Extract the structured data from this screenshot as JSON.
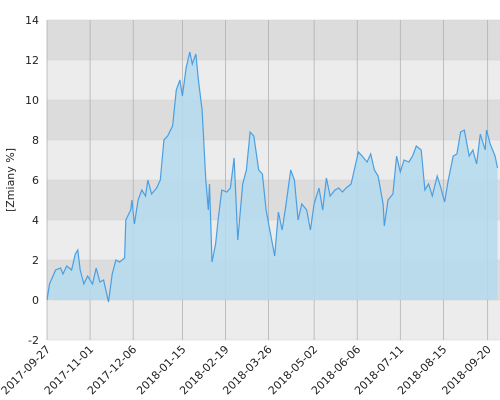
{
  "chart_data": {
    "type": "area",
    "y_label": "[Zmiany %]",
    "x": [
      "2017-09-27",
      "2017-09-29",
      "2017-10-04",
      "2017-10-08",
      "2017-10-10",
      "2017-10-13",
      "2017-10-17",
      "2017-10-20",
      "2017-10-22",
      "2017-10-24",
      "2017-10-27",
      "2017-10-30",
      "2017-11-03",
      "2017-11-06",
      "2017-11-09",
      "2017-11-12",
      "2017-11-16",
      "2017-11-19",
      "2017-11-22",
      "2017-11-25",
      "2017-11-29",
      "2017-11-30",
      "2017-12-04",
      "2017-12-05",
      "2017-12-07",
      "2017-12-10",
      "2017-12-13",
      "2017-12-16",
      "2017-12-18",
      "2017-12-21",
      "2017-12-25",
      "2017-12-28",
      "2017-12-31",
      "2018-01-03",
      "2018-01-07",
      "2018-01-10",
      "2018-01-13",
      "2018-01-15",
      "2018-01-18",
      "2018-01-21",
      "2018-01-23",
      "2018-01-26",
      "2018-01-28",
      "2018-01-31",
      "2018-02-03",
      "2018-02-05",
      "2018-02-06",
      "2018-02-08",
      "2018-02-11",
      "2018-02-13",
      "2018-02-16",
      "2018-02-20",
      "2018-02-23",
      "2018-02-26",
      "2018-03-01",
      "2018-03-05",
      "2018-03-08",
      "2018-03-11",
      "2018-03-14",
      "2018-03-18",
      "2018-03-21",
      "2018-03-24",
      "2018-03-27",
      "2018-03-31",
      "2018-04-03",
      "2018-04-06",
      "2018-04-09",
      "2018-04-13",
      "2018-04-16",
      "2018-04-19",
      "2018-04-22",
      "2018-04-26",
      "2018-04-29",
      "2018-05-02",
      "2018-05-06",
      "2018-05-09",
      "2018-05-12",
      "2018-05-15",
      "2018-05-19",
      "2018-05-22",
      "2018-05-25",
      "2018-05-28",
      "2018-06-01",
      "2018-06-04",
      "2018-06-07",
      "2018-06-10",
      "2018-06-14",
      "2018-06-17",
      "2018-06-20",
      "2018-06-23",
      "2018-06-27",
      "2018-06-28",
      "2018-07-01",
      "2018-07-05",
      "2018-07-08",
      "2018-07-11",
      "2018-07-14",
      "2018-07-18",
      "2018-07-21",
      "2018-07-24",
      "2018-07-28",
      "2018-07-31",
      "2018-08-03",
      "2018-08-06",
      "2018-08-10",
      "2018-08-13",
      "2018-08-16",
      "2018-08-19",
      "2018-08-23",
      "2018-08-26",
      "2018-08-29",
      "2018-09-01",
      "2018-09-05",
      "2018-09-08",
      "2018-09-11",
      "2018-09-14",
      "2018-09-18",
      "2018-09-19",
      "2018-09-22",
      "2018-09-26",
      "2018-09-28"
    ],
    "values": [
      0,
      0.8,
      1.5,
      1.6,
      1.3,
      1.7,
      1.5,
      2.3,
      2.5,
      1.5,
      0.8,
      1.2,
      0.8,
      1.6,
      0.9,
      1,
      -0.1,
      1.3,
      2,
      1.9,
      2.1,
      4,
      4.5,
      5,
      3.8,
      5,
      5.5,
      5.2,
      6,
      5.3,
      5.6,
      6,
      8,
      8.2,
      8.7,
      10.5,
      11,
      10.2,
      11.6,
      12.4,
      11.8,
      12.3,
      11,
      9.5,
      6,
      4.5,
      5.8,
      1.9,
      2.8,
      4,
      5.5,
      5.4,
      5.6,
      7.1,
      3,
      5.8,
      6.5,
      8.4,
      8.2,
      6.5,
      6.3,
      4.5,
      3.5,
      2.2,
      4.4,
      3.5,
      4.7,
      6.5,
      6,
      4,
      4.8,
      4.5,
      3.5,
      4.8,
      5.6,
      4.5,
      6.1,
      5.2,
      5.5,
      5.6,
      5.4,
      5.6,
      5.8,
      6.6,
      7.4,
      7.2,
      6.9,
      7.3,
      6.5,
      6.2,
      4.8,
      3.7,
      5,
      5.3,
      7.2,
      6.4,
      7,
      6.9,
      7.2,
      7.7,
      7.5,
      5.5,
      5.8,
      5.2,
      6.2,
      5.6,
      4.9,
      6,
      7.2,
      7.3,
      8.4,
      8.5,
      7.2,
      7.5,
      6.8,
      8.3,
      7.5,
      8.5,
      7.8,
      7.2,
      6.6
    ],
    "color": "#4a9fe3",
    "fill_color": "#b3dbee",
    "xlim": [
      "2017-09-27",
      "2018-09-30"
    ],
    "xticks": [
      "2017-09-27",
      "2017-11-01",
      "2017-12-06",
      "2018-01-15",
      "2018-02-19",
      "2018-03-26",
      "2018-05-02",
      "2018-06-06",
      "2018-07-11",
      "2018-08-15",
      "2018-09-20"
    ],
    "ylim": [
      -2,
      14
    ],
    "yticks": [
      -2,
      0,
      2,
      4,
      6,
      8,
      10,
      12,
      14
    ],
    "grid": true
  }
}
